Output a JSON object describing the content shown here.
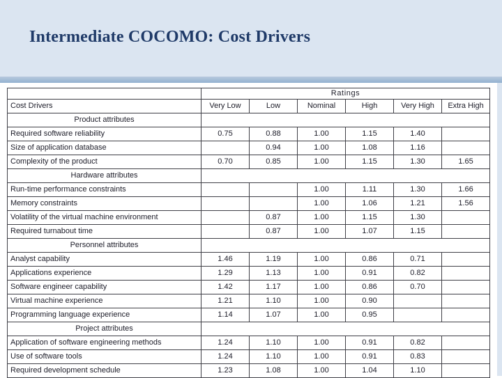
{
  "slide": {
    "title": "Intermediate COCOMO: Cost Drivers"
  },
  "table": {
    "ratings_header": "Ratings",
    "columns": [
      "Cost Drivers",
      "Very Low",
      "Low",
      "Nominal",
      "High",
      "Very High",
      "Extra High"
    ],
    "sections": [
      {
        "name": "Product attributes",
        "rows": [
          {
            "label": "Required software reliability",
            "values": [
              "0.75",
              "0.88",
              "1.00",
              "1.15",
              "1.40",
              ""
            ]
          },
          {
            "label": "Size of application database",
            "values": [
              "",
              "0.94",
              "1.00",
              "1.08",
              "1.16",
              ""
            ]
          },
          {
            "label": "Complexity of the product",
            "values": [
              "0.70",
              "0.85",
              "1.00",
              "1.15",
              "1.30",
              "1.65"
            ]
          }
        ]
      },
      {
        "name": "Hardware attributes",
        "rows": [
          {
            "label": "Run-time performance constraints",
            "values": [
              "",
              "",
              "1.00",
              "1.11",
              "1.30",
              "1.66"
            ]
          },
          {
            "label": "Memory constraints",
            "values": [
              "",
              "",
              "1.00",
              "1.06",
              "1.21",
              "1.56"
            ]
          },
          {
            "label": "Volatility of the virtual machine environment",
            "values": [
              "",
              "0.87",
              "1.00",
              "1.15",
              "1.30",
              ""
            ]
          },
          {
            "label": "Required turnabout time",
            "values": [
              "",
              "0.87",
              "1.00",
              "1.07",
              "1.15",
              ""
            ]
          }
        ]
      },
      {
        "name": "Personnel attributes",
        "rows": [
          {
            "label": "Analyst capability",
            "values": [
              "1.46",
              "1.19",
              "1.00",
              "0.86",
              "0.71",
              ""
            ]
          },
          {
            "label": "Applications experience",
            "values": [
              "1.29",
              "1.13",
              "1.00",
              "0.91",
              "0.82",
              ""
            ]
          },
          {
            "label": "Software engineer capability",
            "values": [
              "1.42",
              "1.17",
              "1.00",
              "0.86",
              "0.70",
              ""
            ]
          },
          {
            "label": "Virtual machine experience",
            "values": [
              "1.21",
              "1.10",
              "1.00",
              "0.90",
              "",
              ""
            ]
          },
          {
            "label": "Programming language experience",
            "values": [
              "1.14",
              "1.07",
              "1.00",
              "0.95",
              "",
              ""
            ]
          }
        ]
      },
      {
        "name": "Project attributes",
        "rows": [
          {
            "label": "Application of software engineering methods",
            "values": [
              "1.24",
              "1.10",
              "1.00",
              "0.91",
              "0.82",
              ""
            ]
          },
          {
            "label": "Use of software tools",
            "values": [
              "1.24",
              "1.10",
              "1.00",
              "0.91",
              "0.83",
              ""
            ]
          },
          {
            "label": "Required development schedule",
            "values": [
              "1.23",
              "1.08",
              "1.00",
              "1.04",
              "1.10",
              ""
            ]
          }
        ]
      }
    ]
  }
}
